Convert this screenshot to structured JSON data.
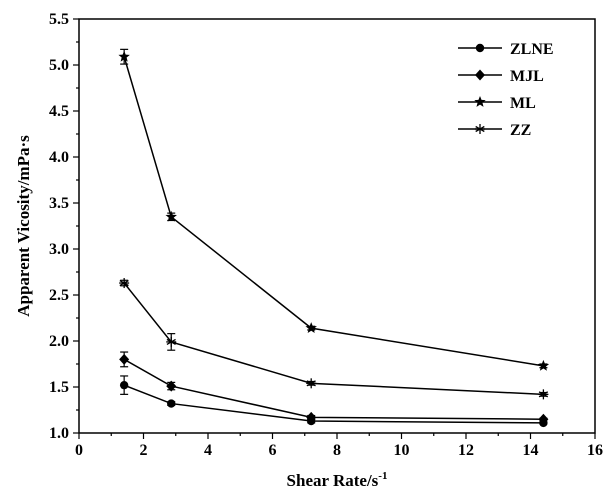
{
  "chart_data": {
    "type": "line",
    "xlabel": "Shear Rate/s",
    "xlabel_sup": "-1",
    "ylabel": "Apparent Vicosity/mPa·s",
    "xlim": [
      0,
      16
    ],
    "ylim": [
      1.0,
      5.5
    ],
    "x_ticks": [
      0,
      2,
      4,
      6,
      8,
      10,
      12,
      14,
      16
    ],
    "x_tick_labels": [
      "0",
      "2",
      "4",
      "6",
      "8",
      "10",
      "12",
      "14",
      "16"
    ],
    "y_ticks": [
      1.0,
      1.5,
      2.0,
      2.5,
      3.0,
      3.5,
      4.0,
      4.5,
      5.0,
      5.5
    ],
    "y_tick_labels": [
      "1.0",
      "1.5",
      "2.0",
      "2.5",
      "3.0",
      "3.5",
      "4.0",
      "4.5",
      "5.0",
      "5.5"
    ],
    "grid": false,
    "legend_position": "top-right",
    "x": [
      1.4,
      2.86,
      7.2,
      14.4
    ],
    "series": [
      {
        "name": "ZLNE",
        "marker": "circle",
        "values": [
          1.52,
          1.32,
          1.13,
          1.11
        ],
        "errors": [
          0.1,
          0.02,
          0.02,
          0.01
        ]
      },
      {
        "name": "MJL",
        "marker": "diamond",
        "values": [
          1.8,
          1.51,
          1.17,
          1.15
        ],
        "errors": [
          0.08,
          0.04,
          0.02,
          0.01
        ]
      },
      {
        "name": "ML",
        "marker": "star",
        "values": [
          5.09,
          3.35,
          2.14,
          1.73
        ],
        "errors": [
          0.08,
          0.04,
          0.02,
          0.02
        ]
      },
      {
        "name": "ZZ",
        "marker": "asterisk",
        "values": [
          2.63,
          1.99,
          1.54,
          1.42
        ],
        "errors": [
          0.03,
          0.09,
          0.02,
          0.02
        ]
      }
    ]
  }
}
